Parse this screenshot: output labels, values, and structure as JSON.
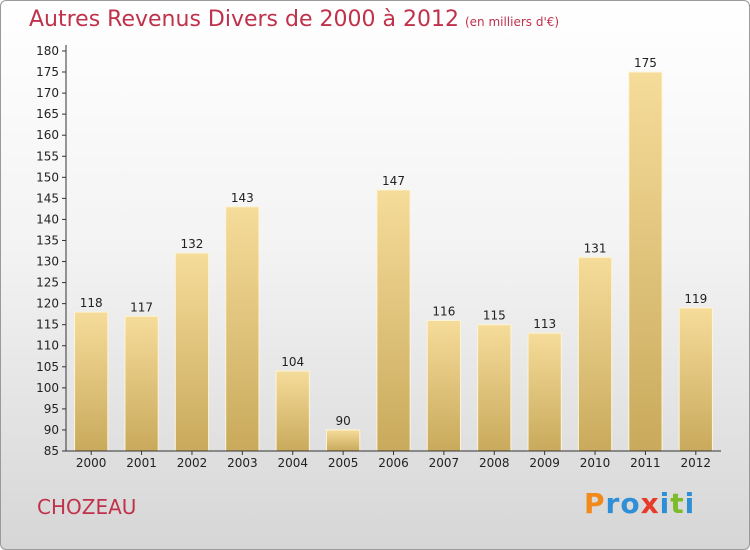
{
  "header": {
    "title": "Autres Revenus Divers de 2000 à 2012",
    "unit": "(en milliers d'€)"
  },
  "footer": {
    "town": "CHOZEAU",
    "logo_letters": [
      "P",
      "r",
      "o",
      "x",
      "i",
      "t",
      "i"
    ],
    "logo_colors": [
      "#f08a1c",
      "#2e8fd6",
      "#2e8fd6",
      "#e83a2a",
      "#2e8fd6",
      "#7cbb2a",
      "#2e8fd6"
    ]
  },
  "colors": {
    "title": "#c0314b",
    "bar_light": "#f6dc9a",
    "bar_dark": "#c9aa5c"
  },
  "chart_data": {
    "type": "bar",
    "categories": [
      "2000",
      "2001",
      "2002",
      "2003",
      "2004",
      "2005",
      "2006",
      "2007",
      "2008",
      "2009",
      "2010",
      "2011",
      "2012"
    ],
    "values": [
      118,
      117,
      132,
      143,
      104,
      90,
      147,
      116,
      115,
      113,
      131,
      175,
      119
    ],
    "ylim": [
      85,
      180
    ],
    "ytick_step": 5,
    "grid": false,
    "data_labels": true
  }
}
